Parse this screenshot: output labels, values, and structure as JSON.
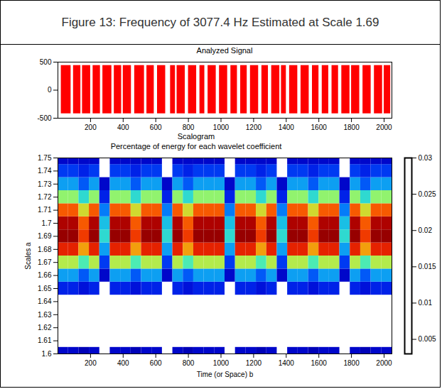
{
  "title": "Figure 13: Frequency of 3077.4 Hz Estimated at Scale 1.69",
  "chart_data": [
    {
      "type": "area",
      "title": "Analyzed Signal",
      "color": "#ff0000",
      "xlim": [
        0,
        2048
      ],
      "xticks": [
        200,
        400,
        600,
        800,
        1000,
        1200,
        1400,
        1600,
        1800,
        2000
      ],
      "ylim": [
        -500,
        500
      ],
      "yticks": [
        -500,
        0,
        500
      ],
      "burst_start": [
        20,
        95,
        150,
        215,
        275,
        345,
        400,
        470,
        545,
        610,
        690,
        730,
        800,
        870,
        920,
        990,
        1060,
        1120,
        1180,
        1250,
        1310,
        1370,
        1420,
        1490,
        1560,
        1620,
        1680,
        1740,
        1800,
        1870,
        1940,
        2000
      ],
      "burst_end": [
        80,
        140,
        200,
        260,
        330,
        390,
        450,
        530,
        590,
        660,
        720,
        780,
        850,
        900,
        970,
        1040,
        1100,
        1160,
        1230,
        1290,
        1360,
        1400,
        1470,
        1540,
        1600,
        1660,
        1720,
        1790,
        1850,
        1920,
        1990,
        2040
      ],
      "burst_low": -420,
      "burst_high": 440
    },
    {
      "type": "heatmap",
      "title": "Scalogram",
      "subtitle": "Percentage of energy for each wavelet coefficient",
      "xlabel": "Time (or Space) b",
      "ylabel": "Scales a",
      "xlim": [
        0,
        2048
      ],
      "xticks": [
        200,
        400,
        600,
        800,
        1000,
        1200,
        1400,
        1600,
        1800,
        2000
      ],
      "ylim": [
        1.6,
        1.75
      ],
      "yticks": [
        1.6,
        1.61,
        1.62,
        1.63,
        1.64,
        1.65,
        1.66,
        1.67,
        1.68,
        1.69,
        1.7,
        1.71,
        1.72,
        1.73,
        1.74,
        1.75
      ],
      "x_edges": [
        0,
        64,
        128,
        192,
        256,
        320,
        384,
        448,
        512,
        576,
        640,
        704,
        768,
        832,
        896,
        960,
        1024,
        1088,
        1152,
        1216,
        1280,
        1344,
        1408,
        1472,
        1536,
        1600,
        1664,
        1728,
        1792,
        1856,
        1920,
        1984,
        2048
      ],
      "scales": [
        1.6,
        1.61,
        1.62,
        1.63,
        1.64,
        1.65,
        1.66,
        1.67,
        1.68,
        1.69,
        1.7,
        1.71,
        1.72,
        1.73,
        1.74,
        1.75
      ],
      "cells": [
        [
          0.006,
          0.006,
          0.005,
          0.006,
          null,
          0.006,
          0.006,
          0.005,
          0.006,
          0.006,
          null,
          0.006,
          0.005,
          0.006,
          0.006,
          0.006,
          null,
          0.006,
          0.006,
          0.005,
          0.006,
          null,
          0.006,
          0.006,
          0.005,
          0.006,
          0.006,
          null,
          0.006,
          0.005,
          0.006,
          0.006
        ],
        [
          null,
          null,
          null,
          null,
          null,
          null,
          null,
          null,
          null,
          null,
          null,
          null,
          null,
          null,
          null,
          null,
          null,
          null,
          null,
          null,
          null,
          null,
          null,
          null,
          null,
          null,
          null,
          null,
          null,
          null,
          null,
          null
        ],
        [
          null,
          null,
          null,
          null,
          null,
          null,
          null,
          null,
          null,
          null,
          null,
          null,
          null,
          null,
          null,
          null,
          null,
          null,
          null,
          null,
          null,
          null,
          null,
          null,
          null,
          null,
          null,
          null,
          null,
          null,
          null,
          null
        ],
        [
          null,
          null,
          null,
          null,
          null,
          null,
          null,
          null,
          null,
          null,
          null,
          null,
          null,
          null,
          null,
          null,
          null,
          null,
          null,
          null,
          null,
          null,
          null,
          null,
          null,
          null,
          null,
          null,
          null,
          null,
          null,
          null
        ],
        [
          null,
          null,
          null,
          null,
          null,
          null,
          null,
          null,
          null,
          null,
          null,
          null,
          null,
          null,
          null,
          null,
          null,
          null,
          null,
          null,
          null,
          null,
          null,
          null,
          null,
          null,
          null,
          null,
          null,
          null,
          null,
          null
        ],
        [
          0.008,
          0.008,
          0.007,
          0.008,
          null,
          0.008,
          0.008,
          0.007,
          0.008,
          0.008,
          null,
          0.008,
          0.007,
          0.008,
          0.008,
          0.008,
          null,
          0.008,
          0.008,
          0.007,
          0.008,
          null,
          0.008,
          0.008,
          0.007,
          0.008,
          0.008,
          null,
          0.008,
          0.007,
          0.008,
          0.008
        ],
        [
          0.012,
          0.012,
          0.01,
          0.012,
          0.006,
          0.012,
          0.012,
          0.01,
          0.012,
          0.012,
          0.006,
          0.012,
          0.01,
          0.012,
          0.012,
          0.012,
          0.006,
          0.012,
          0.012,
          0.01,
          0.012,
          0.006,
          0.012,
          0.012,
          0.01,
          0.012,
          0.012,
          0.006,
          0.012,
          0.01,
          0.012,
          0.012
        ],
        [
          0.018,
          0.018,
          0.015,
          0.018,
          0.009,
          0.018,
          0.018,
          0.015,
          0.018,
          0.018,
          0.009,
          0.018,
          0.015,
          0.018,
          0.018,
          0.018,
          0.009,
          0.018,
          0.018,
          0.015,
          0.018,
          0.009,
          0.018,
          0.018,
          0.015,
          0.018,
          0.018,
          0.009,
          0.018,
          0.015,
          0.018,
          0.018
        ],
        [
          0.025,
          0.025,
          0.021,
          0.025,
          0.012,
          0.025,
          0.025,
          0.021,
          0.025,
          0.025,
          0.012,
          0.025,
          0.021,
          0.025,
          0.025,
          0.025,
          0.012,
          0.025,
          0.025,
          0.021,
          0.025,
          0.012,
          0.025,
          0.025,
          0.021,
          0.025,
          0.025,
          0.012,
          0.025,
          0.021,
          0.025,
          0.025
        ],
        [
          0.029,
          0.029,
          0.024,
          0.029,
          0.014,
          0.029,
          0.029,
          0.024,
          0.029,
          0.029,
          0.014,
          0.029,
          0.024,
          0.029,
          0.029,
          0.029,
          0.014,
          0.029,
          0.029,
          0.024,
          0.029,
          0.014,
          0.029,
          0.029,
          0.024,
          0.029,
          0.029,
          0.014,
          0.029,
          0.024,
          0.029,
          0.029
        ],
        [
          0.028,
          0.028,
          0.023,
          0.028,
          0.013,
          0.028,
          0.028,
          0.023,
          0.028,
          0.028,
          0.013,
          0.028,
          0.023,
          0.028,
          0.028,
          0.028,
          0.013,
          0.028,
          0.028,
          0.023,
          0.028,
          0.013,
          0.028,
          0.028,
          0.023,
          0.028,
          0.028,
          0.013,
          0.028,
          0.023,
          0.028,
          0.028
        ],
        [
          0.023,
          0.023,
          0.019,
          0.023,
          0.011,
          0.023,
          0.023,
          0.019,
          0.023,
          0.023,
          0.011,
          0.023,
          0.019,
          0.023,
          0.023,
          0.023,
          0.011,
          0.023,
          0.023,
          0.019,
          0.023,
          0.011,
          0.023,
          0.023,
          0.019,
          0.023,
          0.023,
          0.011,
          0.023,
          0.019,
          0.023,
          0.023
        ],
        [
          0.017,
          0.017,
          0.014,
          0.017,
          0.008,
          0.017,
          0.017,
          0.014,
          0.017,
          0.017,
          0.008,
          0.017,
          0.014,
          0.017,
          0.017,
          0.017,
          0.008,
          0.017,
          0.017,
          0.014,
          0.017,
          0.008,
          0.017,
          0.017,
          0.014,
          0.017,
          0.017,
          0.008,
          0.017,
          0.014,
          0.017,
          0.017
        ],
        [
          0.012,
          0.012,
          0.01,
          0.012,
          0.006,
          0.012,
          0.012,
          0.01,
          0.012,
          0.012,
          0.006,
          0.012,
          0.01,
          0.012,
          0.012,
          0.012,
          0.006,
          0.012,
          0.012,
          0.01,
          0.012,
          0.006,
          0.012,
          0.012,
          0.01,
          0.012,
          0.012,
          0.006,
          0.012,
          0.01,
          0.012,
          0.012
        ],
        [
          0.009,
          0.009,
          0.008,
          0.009,
          null,
          0.009,
          0.009,
          0.008,
          0.009,
          0.009,
          null,
          0.009,
          0.008,
          0.009,
          0.009,
          0.009,
          null,
          0.009,
          0.009,
          0.008,
          0.009,
          null,
          0.009,
          0.009,
          0.008,
          0.009,
          0.009,
          null,
          0.009,
          0.008,
          0.009,
          0.009
        ],
        [
          0.006,
          0.006,
          0.006,
          0.006,
          null,
          0.006,
          0.006,
          0.006,
          0.006,
          0.006,
          null,
          0.006,
          0.006,
          0.006,
          0.006,
          0.006,
          null,
          0.006,
          0.006,
          0.006,
          0.006,
          null,
          0.006,
          0.006,
          0.006,
          0.006,
          0.006,
          null,
          0.006,
          0.006,
          0.006,
          0.006
        ]
      ],
      "colorbar": {
        "lim": [
          0.003,
          0.03
        ],
        "ticks": [
          0.005,
          0.01,
          0.015,
          0.02,
          0.025,
          0.03
        ]
      }
    }
  ]
}
